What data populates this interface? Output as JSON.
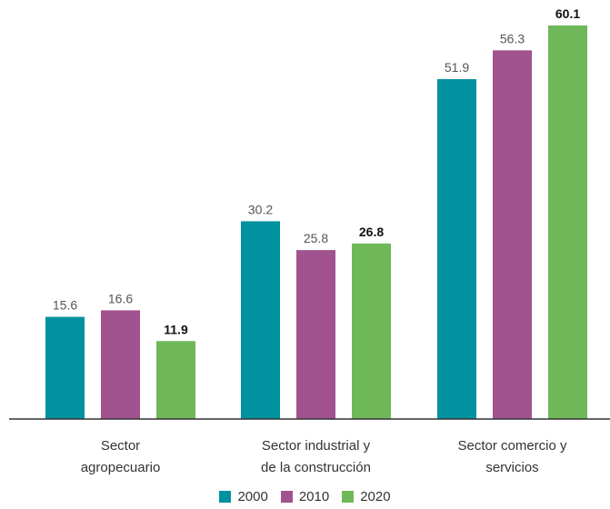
{
  "chart_data": {
    "type": "bar",
    "categories": [
      [
        "Sector",
        "agropecuario"
      ],
      [
        "Sector industrial y",
        "de la construcción"
      ],
      [
        "Sector comercio y",
        "servicios"
      ]
    ],
    "series": [
      {
        "name": "2000",
        "color": "#00929f",
        "values": [
          15.6,
          30.2,
          51.9
        ],
        "labels": [
          "15.6",
          "30.2",
          "51.9"
        ]
      },
      {
        "name": "2010",
        "color": "#a0538f",
        "values": [
          16.6,
          25.8,
          56.3
        ],
        "labels": [
          "16.6",
          "25.8",
          "56.3"
        ]
      },
      {
        "name": "2020",
        "color": "#6fb85a",
        "values": [
          11.9,
          26.8,
          60.1
        ],
        "labels": [
          "11.9",
          "26.8",
          "60.1"
        ],
        "labels_bold": true
      }
    ],
    "ylim": [
      0,
      60.1
    ],
    "grid": false,
    "legend_position": "bottom"
  }
}
